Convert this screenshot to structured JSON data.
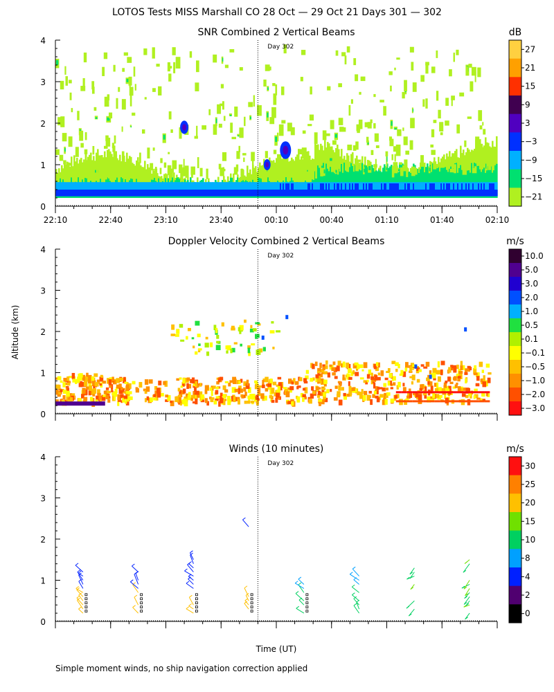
{
  "figure": {
    "title": "LOTOS Tests MISS Marshall CO  28 Oct — 29 Oct 21 Days 301 — 302",
    "xlabel": "Time (UT)",
    "ylabel": "Altitude (km)",
    "day_marker_label": "Day 302",
    "footnote": "Simple moment winds, no ship navigation correction applied"
  },
  "chart_data": [
    {
      "type": "heatmap",
      "title": "SNR Combined 2 Vertical Beams",
      "unit": "dB",
      "x_ticks": [
        "22:10",
        "22:40",
        "23:10",
        "23:40",
        "00:10",
        "00:40",
        "01:10",
        "01:40",
        "02:10"
      ],
      "x_range_minutes": [
        0,
        240
      ],
      "y_ticks": [
        0,
        1,
        2,
        3,
        4
      ],
      "ylim": [
        0,
        4
      ],
      "day_boundary_minutes": 110,
      "colorbar": {
        "labels": [
          "27",
          "21",
          "15",
          "9",
          "3",
          "−3",
          "−9",
          "−15",
          "−21"
        ],
        "colors": [
          "#ffd040",
          "#ffa000",
          "#ff3000",
          "#400050",
          "#5000c0",
          "#0030ff",
          "#00b0ff",
          "#00e070",
          "#b0f020"
        ]
      }
    },
    {
      "type": "heatmap",
      "title": "Doppler Velocity Combined 2 Vertical Beams",
      "unit": "m/s",
      "x_range_minutes": [
        0,
        240
      ],
      "y_ticks": [
        0,
        1,
        2,
        3,
        4
      ],
      "ylim": [
        0,
        4
      ],
      "day_boundary_minutes": 110,
      "colorbar": {
        "labels": [
          "10.0",
          "5.0",
          "3.0",
          "2.0",
          "1.0",
          "0.5",
          "0.1",
          "−0.1",
          "−0.5",
          "−1.0",
          "−2.0",
          "−3.0"
        ],
        "colors": [
          "#300030",
          "#500090",
          "#2000d0",
          "#0050ff",
          "#00b0ff",
          "#20e040",
          "#b0f000",
          "#ffff00",
          "#ffc000",
          "#ff9000",
          "#ff5000",
          "#ff1010"
        ]
      }
    },
    {
      "type": "wind_barbs",
      "title": "Winds (10 minutes)",
      "unit": "m/s",
      "x_range_minutes": [
        0,
        240
      ],
      "y_ticks": [
        0,
        1,
        2,
        3,
        4
      ],
      "ylim": [
        0,
        4
      ],
      "day_boundary_minutes": 110,
      "profile_times_minutes": [
        15,
        45,
        75,
        105,
        135,
        165,
        195,
        225
      ],
      "colorbar": {
        "labels": [
          "30",
          "25",
          "20",
          "15",
          "10",
          "8",
          "4",
          "2",
          "0"
        ],
        "colors": [
          "#ff1010",
          "#ff8000",
          "#ffc000",
          "#70e000",
          "#00d060",
          "#00a0ff",
          "#0020ff",
          "#500070",
          "#000000"
        ]
      }
    }
  ]
}
